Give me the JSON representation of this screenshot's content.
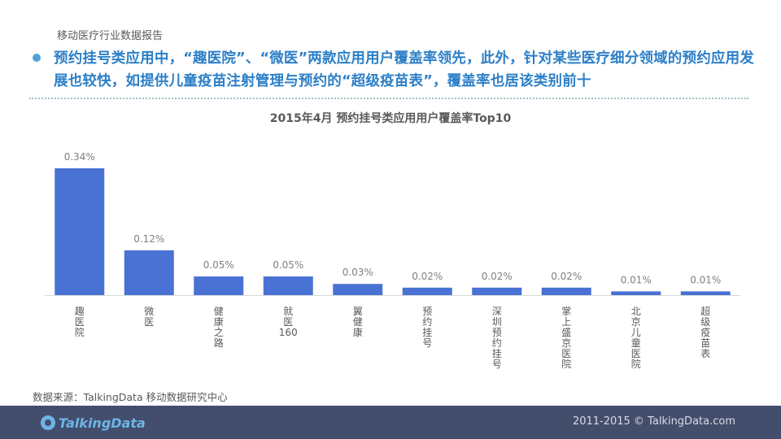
{
  "header": {
    "report_label": "移动医疗行业数据报告",
    "headline": "预约挂号类应用中，“趣医院”、“微医”两款应用用户覆盖率领先，此外，针对某些医疗细分领域的预约应用发展也较快，如提供儿童疫苗注射管理与预约的“超级疫苗表”，覆盖率也居该类别前十"
  },
  "colors": {
    "bar": "#4a72d4",
    "headline": "#2c7fc7",
    "footer": "#434e6d",
    "bullet": "#4fa3d9"
  },
  "chart_data": {
    "type": "bar",
    "title": "2015年4月 预约挂号类应用用户覆盖率Top10",
    "xlabel": "",
    "ylabel": "",
    "categories": [
      "趣医院",
      "微医",
      "健康之路",
      "就医160",
      "翼健康",
      "预约挂号",
      "深圳预约挂号",
      "掌上盛京医院",
      "北京儿童医院",
      "超级疫苗表"
    ],
    "values": [
      0.34,
      0.12,
      0.05,
      0.05,
      0.03,
      0.02,
      0.02,
      0.02,
      0.01,
      0.01
    ],
    "value_labels": [
      "0.34%",
      "0.12%",
      "0.05%",
      "0.05%",
      "0.03%",
      "0.02%",
      "0.02%",
      "0.02%",
      "0.01%",
      "0.01%"
    ],
    "ylim": [
      0,
      0.34
    ],
    "grid": false,
    "legend": "none"
  },
  "footer": {
    "source": "数据来源：TalkingData 移动数据研究中心",
    "logo_text": "TalkingData",
    "copyright": "2011-2015 © TalkingData.com"
  }
}
